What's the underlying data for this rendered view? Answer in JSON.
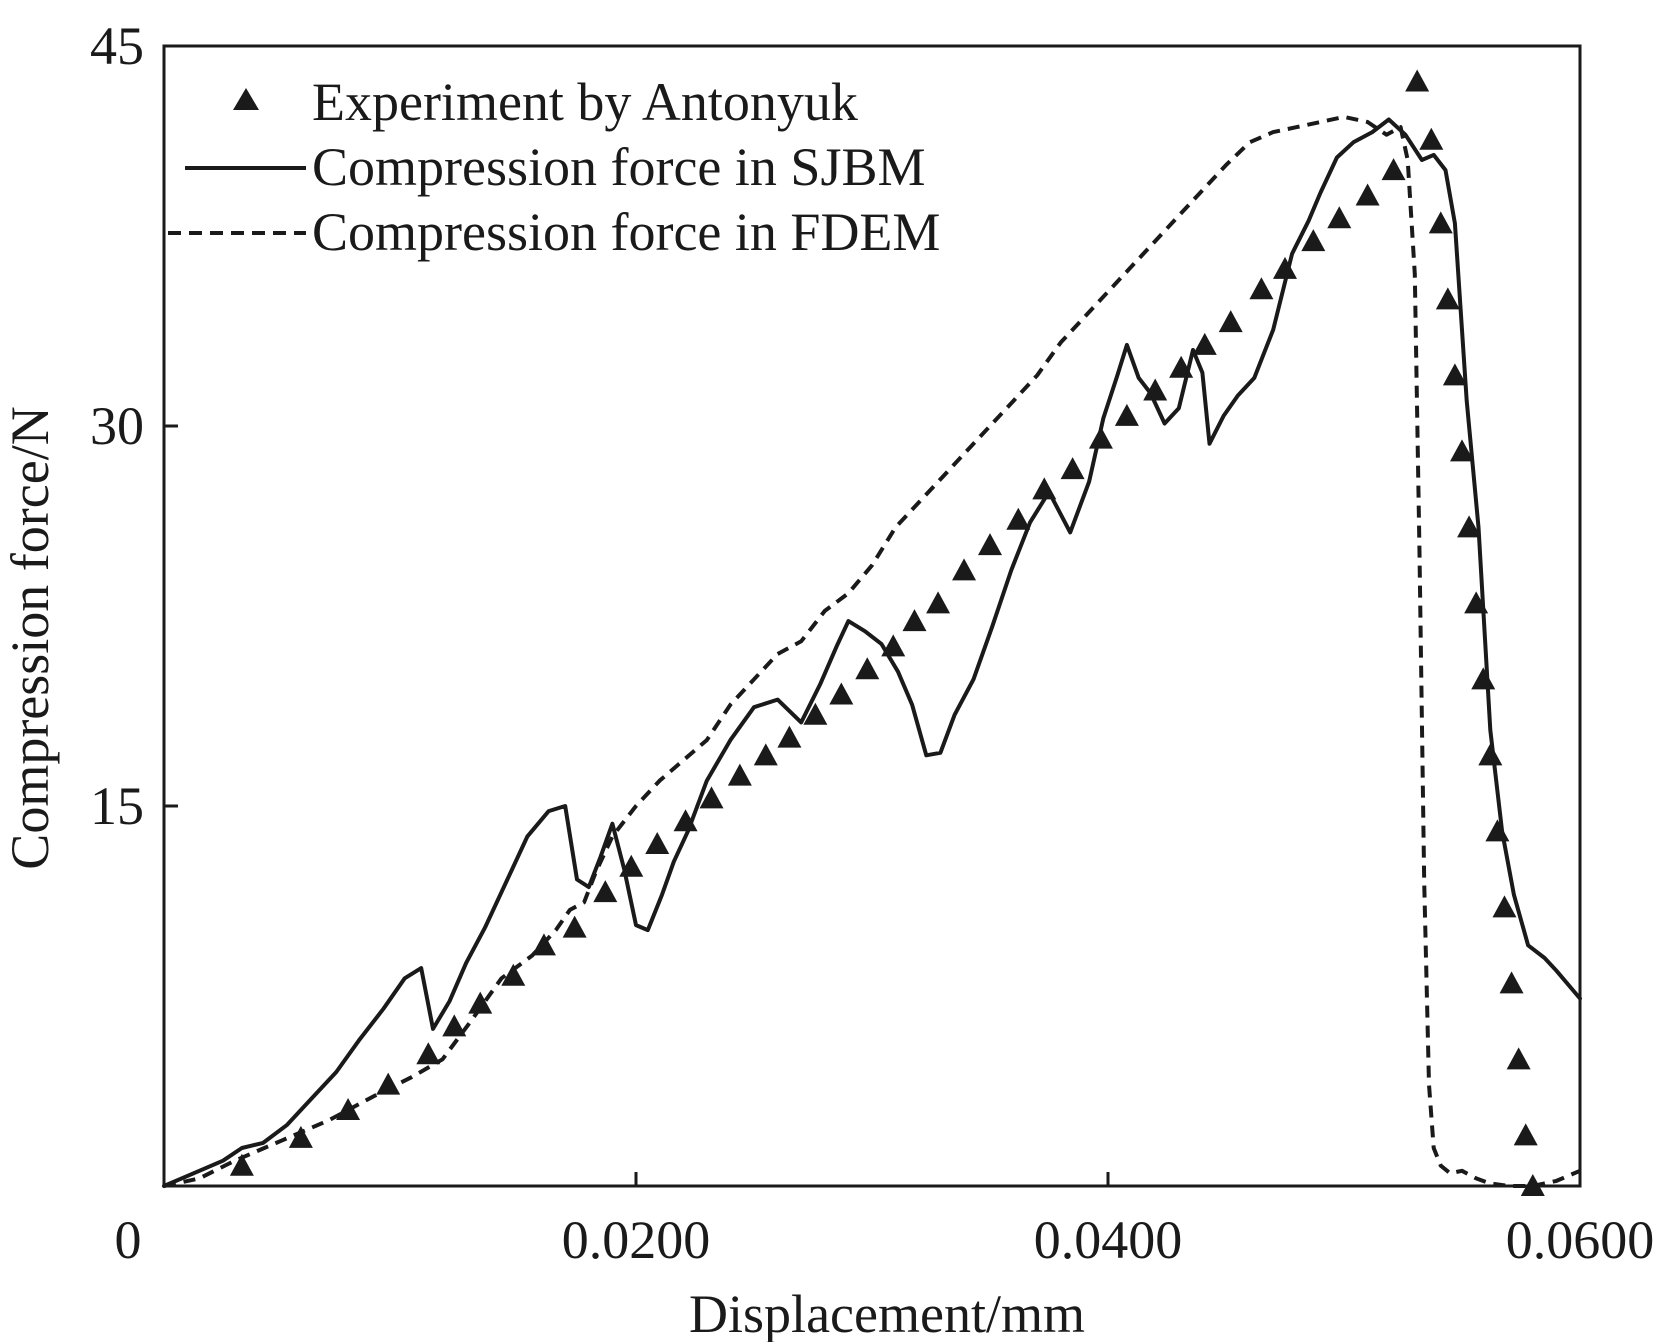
{
  "chart_data": {
    "type": "line",
    "title": "",
    "xlabel": "Displacement/mm",
    "ylabel": "Compression force/N",
    "xlim": [
      0,
      0.06
    ],
    "ylim": [
      0,
      45
    ],
    "x_ticks": [
      {
        "value": 0,
        "label": "0"
      },
      {
        "value": 0.02,
        "label": "0.0200"
      },
      {
        "value": 0.04,
        "label": "0.0400"
      },
      {
        "value": 0.06,
        "label": "0.0600"
      }
    ],
    "y_ticks": [
      {
        "value": 15,
        "label": "15"
      },
      {
        "value": 30,
        "label": "30"
      },
      {
        "value": 45,
        "label": "45"
      }
    ],
    "grid": false,
    "legend_position": "top-left",
    "colors": {
      "ink": "#1a1a1a"
    },
    "series": [
      {
        "name": "Experiment by Antonyuk",
        "style": "triangle-markers",
        "x": [
          0.0033,
          0.0058,
          0.0078,
          0.0095,
          0.0112,
          0.0123,
          0.0134,
          0.0148,
          0.0161,
          0.0174,
          0.0187,
          0.0198,
          0.0209,
          0.0221,
          0.0232,
          0.0244,
          0.0255,
          0.0265,
          0.0276,
          0.0287,
          0.0298,
          0.0309,
          0.0318,
          0.0328,
          0.0339,
          0.035,
          0.0362,
          0.0373,
          0.0385,
          0.0397,
          0.0408,
          0.042,
          0.0431,
          0.0441,
          0.0452,
          0.0465,
          0.0475,
          0.0487,
          0.0498,
          0.051,
          0.0521,
          0.0531,
          0.0537,
          0.0541,
          0.0544,
          0.0547,
          0.055,
          0.0553,
          0.0556,
          0.0559,
          0.0562,
          0.0565,
          0.0568,
          0.0571,
          0.0574,
          0.0577,
          0.058
        ],
        "y": [
          0.8,
          1.9,
          3.0,
          4.0,
          5.2,
          6.3,
          7.2,
          8.3,
          9.5,
          10.2,
          11.6,
          12.6,
          13.5,
          14.4,
          15.3,
          16.2,
          17.0,
          17.7,
          18.6,
          19.4,
          20.4,
          21.3,
          22.3,
          23.0,
          24.3,
          25.3,
          26.3,
          27.5,
          28.3,
          29.5,
          30.4,
          31.4,
          32.3,
          33.2,
          34.1,
          35.4,
          36.2,
          37.3,
          38.2,
          39.1,
          40.1,
          43.6,
          41.3,
          38.0,
          35.0,
          32.0,
          29.0,
          26.0,
          23.0,
          20.0,
          17.0,
          14.0,
          11.0,
          8.0,
          5.0,
          2.0,
          0.0
        ]
      },
      {
        "name": "Compression force in SJBM",
        "style": "solid",
        "x": [
          0.0,
          0.0015,
          0.0025,
          0.0033,
          0.0042,
          0.0052,
          0.0062,
          0.0073,
          0.0083,
          0.0093,
          0.0102,
          0.0109,
          0.0114,
          0.0121,
          0.0128,
          0.0136,
          0.0145,
          0.0154,
          0.0163,
          0.017,
          0.0175,
          0.018,
          0.0185,
          0.019,
          0.0195,
          0.02,
          0.0205,
          0.0211,
          0.0216,
          0.0222,
          0.023,
          0.024,
          0.025,
          0.026,
          0.027,
          0.0278,
          0.0285,
          0.029,
          0.0297,
          0.0304,
          0.0311,
          0.0317,
          0.0323,
          0.0329,
          0.0335,
          0.0343,
          0.0351,
          0.0359,
          0.0367,
          0.0375,
          0.0384,
          0.0392,
          0.0398,
          0.0404,
          0.0408,
          0.0413,
          0.0418,
          0.0424,
          0.043,
          0.0436,
          0.044,
          0.0443,
          0.0449,
          0.0455,
          0.0462,
          0.047,
          0.0478,
          0.0485,
          0.049,
          0.0497,
          0.0504,
          0.0512,
          0.0519,
          0.0526,
          0.0533,
          0.0538,
          0.0543,
          0.0547,
          0.0552,
          0.0557,
          0.0562,
          0.0567,
          0.0572,
          0.0578,
          0.0585,
          0.059,
          0.06
        ],
        "y": [
          0.0,
          0.6,
          1.0,
          1.5,
          1.7,
          2.4,
          3.4,
          4.5,
          5.8,
          7.0,
          8.2,
          8.6,
          6.2,
          7.3,
          8.8,
          10.2,
          12.0,
          13.8,
          14.8,
          15.0,
          12.1,
          11.8,
          13.0,
          14.3,
          12.5,
          10.3,
          10.1,
          11.5,
          12.8,
          14.0,
          16.0,
          17.6,
          18.9,
          19.2,
          18.3,
          19.8,
          21.3,
          22.3,
          21.9,
          21.4,
          20.3,
          19.0,
          17.0,
          17.1,
          18.6,
          20.0,
          22.1,
          24.3,
          26.2,
          27.4,
          25.8,
          27.8,
          30.3,
          32.0,
          33.2,
          31.9,
          31.3,
          30.1,
          30.7,
          33.0,
          32.1,
          29.3,
          30.4,
          31.2,
          31.9,
          33.8,
          36.8,
          38.1,
          39.2,
          40.6,
          41.2,
          41.6,
          42.1,
          41.5,
          40.5,
          40.7,
          40.1,
          38.0,
          31.0,
          26.0,
          18.0,
          14.0,
          11.5,
          9.5,
          9.0,
          8.5,
          7.4
        ]
      },
      {
        "name": "Compression force in FDEM",
        "style": "dashed",
        "x": [
          0.0,
          0.0015,
          0.003,
          0.005,
          0.007,
          0.009,
          0.0105,
          0.0118,
          0.013,
          0.0143,
          0.0156,
          0.0166,
          0.0172,
          0.0178,
          0.0183,
          0.019,
          0.02,
          0.021,
          0.022,
          0.023,
          0.024,
          0.025,
          0.026,
          0.027,
          0.028,
          0.029,
          0.03,
          0.031,
          0.032,
          0.033,
          0.034,
          0.035,
          0.036,
          0.037,
          0.038,
          0.039,
          0.04,
          0.041,
          0.042,
          0.043,
          0.044,
          0.045,
          0.046,
          0.047,
          0.048,
          0.049,
          0.05,
          0.051,
          0.0518,
          0.0524,
          0.0527,
          0.053,
          0.0532,
          0.0534,
          0.0536,
          0.0538,
          0.0541,
          0.0545,
          0.055,
          0.0556,
          0.0562,
          0.057,
          0.058,
          0.059,
          0.06
        ],
        "y": [
          0.0,
          0.3,
          1.0,
          1.8,
          2.6,
          3.6,
          4.3,
          5.0,
          6.5,
          8.2,
          9.1,
          10.1,
          10.9,
          11.2,
          12.4,
          13.8,
          15.0,
          16.0,
          16.8,
          17.6,
          19.0,
          20.0,
          21.0,
          21.5,
          22.7,
          23.4,
          24.5,
          26.0,
          27.0,
          28.0,
          29.0,
          30.0,
          31.0,
          32.0,
          33.3,
          34.3,
          35.3,
          36.3,
          37.3,
          38.3,
          39.3,
          40.3,
          41.2,
          41.6,
          41.8,
          42.0,
          42.2,
          42.0,
          41.5,
          41.8,
          40.5,
          36.0,
          25.0,
          12.0,
          4.0,
          1.5,
          0.8,
          0.5,
          0.6,
          0.3,
          0.1,
          0.0,
          0.0,
          0.2,
          0.6
        ]
      }
    ]
  }
}
